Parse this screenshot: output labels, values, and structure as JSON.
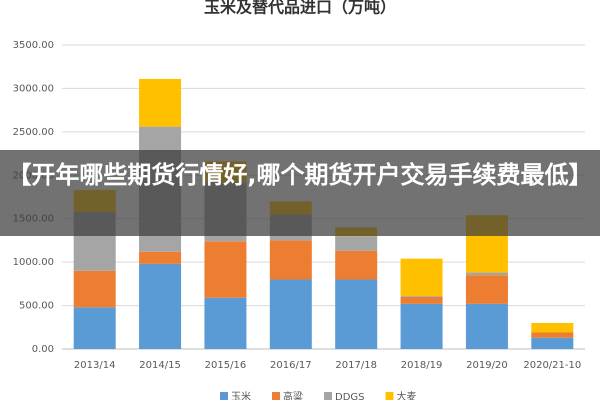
{
  "chart_data": {
    "type": "stacked_bar",
    "title": "玉米及替代品进口（万吨）",
    "categories": [
      "2013/14",
      "2014/15",
      "2015/16",
      "2016/17",
      "2017/18",
      "2018/19",
      "2019/20",
      "2020/21-10"
    ],
    "series": [
      {
        "name": "玉米",
        "color": "#5b9bd5",
        "values": [
          480,
          980,
          590,
          800,
          800,
          520,
          520,
          130
        ]
      },
      {
        "name": "高粱",
        "color": "#ed7d31",
        "values": [
          420,
          140,
          650,
          450,
          330,
          80,
          330,
          60
        ]
      },
      {
        "name": "DDGS",
        "color": "#a5a5a5",
        "values": [
          680,
          1440,
          680,
          300,
          170,
          10,
          30,
          0
        ]
      },
      {
        "name": "大麦",
        "color": "#ffc000",
        "values": [
          250,
          550,
          240,
          150,
          100,
          430,
          660,
          110
        ]
      }
    ],
    "ylim": [
      0,
      3500
    ],
    "yticks": [
      {
        "value": 0,
        "label": "0.00"
      },
      {
        "value": 500,
        "label": "500.00"
      },
      {
        "value": 1000,
        "label": "1000.00"
      },
      {
        "value": 1500,
        "label": "1500.00"
      },
      {
        "value": 2000,
        "label": "2000.00"
      },
      {
        "value": 2500,
        "label": "2500.00"
      },
      {
        "value": 3000,
        "label": "3000.00"
      },
      {
        "value": 3500,
        "label": "3500.00"
      }
    ],
    "grid": true
  },
  "banner": {
    "text": "【开年哪些期货行情好,哪个期货开户交易手续费最低】"
  }
}
